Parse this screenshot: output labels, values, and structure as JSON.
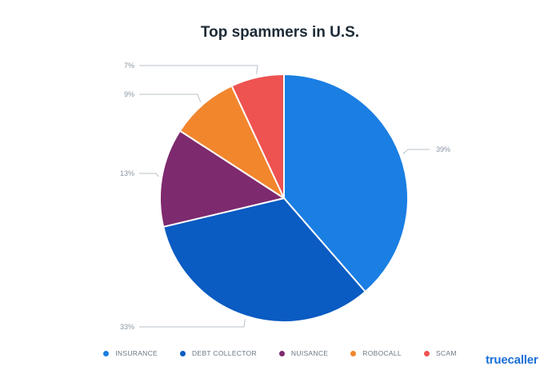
{
  "chart_data": {
    "type": "pie",
    "title": "Top spammers in U.S.",
    "series": [
      {
        "name": "INSURANCE",
        "value": 39,
        "label": "39%",
        "color": "#1a7ee3"
      },
      {
        "name": "DEBT COLLECTOR",
        "value": 33,
        "label": "33%",
        "color": "#0a5bc2"
      },
      {
        "name": "NUISANCE",
        "value": 13,
        "label": "13%",
        "color": "#7e2a6e"
      },
      {
        "name": "ROBOCALL",
        "value": 9,
        "label": "9%",
        "color": "#f2862d"
      },
      {
        "name": "SCAM",
        "value": 7,
        "label": "7%",
        "color": "#ee5251"
      }
    ],
    "legend_position": "bottom"
  },
  "brand": {
    "logo_text": "truecaller"
  }
}
